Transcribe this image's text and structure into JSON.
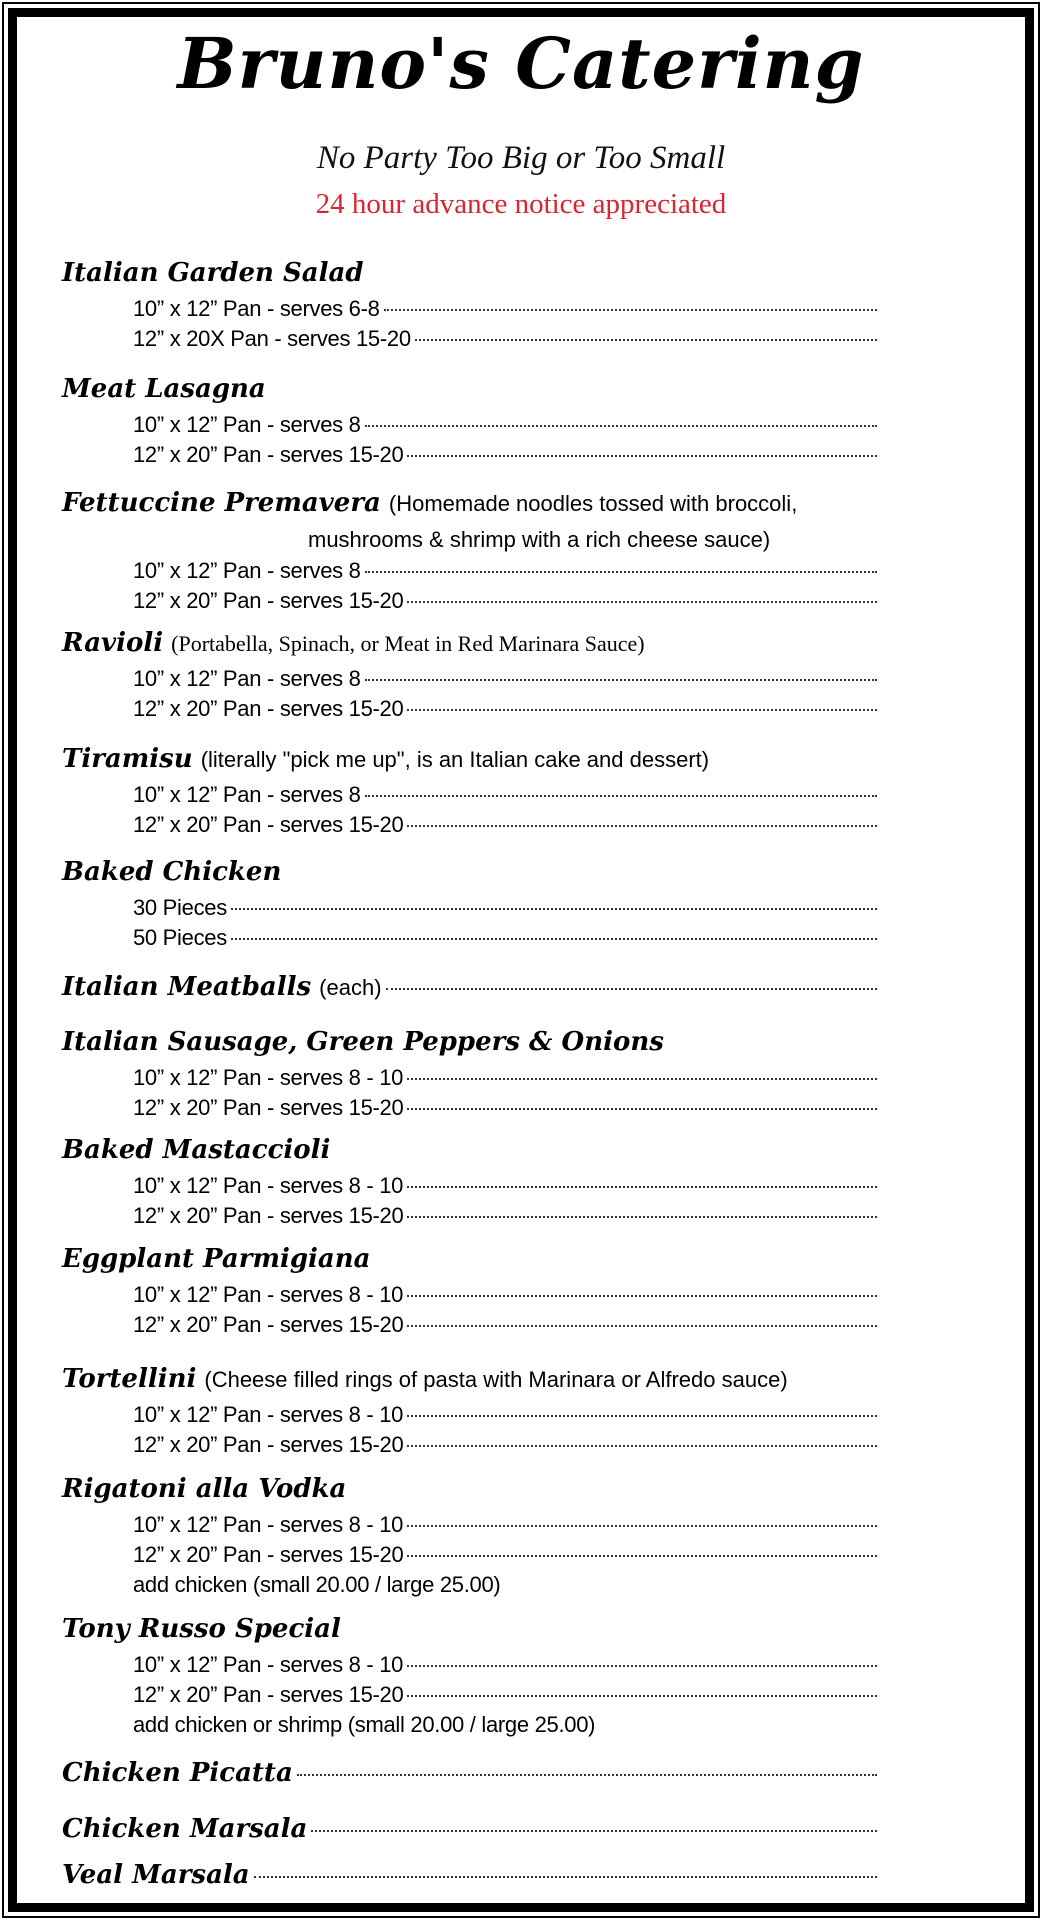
{
  "header": {
    "title": "Bruno's Catering",
    "subtitle": "No Party Too Big or Too Small",
    "notice": "24 hour advance notice appreciated"
  },
  "colors": {
    "notice": "#d7262f",
    "text": "#000000",
    "border": "#000000"
  },
  "sections": [
    {
      "name": "Italian Garden Salad",
      "items": [
        "10” x 12” Pan -  serves 6-8",
        "12” x 20X Pan -  serves 15-20"
      ]
    },
    {
      "name": "Meat Lasagna",
      "items": [
        "10” x 12” Pan -  serves 8",
        "12” x 20” Pan -  serves 15-20"
      ]
    },
    {
      "name": "Fettuccine Premavera",
      "desc": "(Homemade noodles tossed with broccoli,",
      "desc2": "mushrooms & shrimp with a rich cheese sauce)",
      "items": [
        "10” x 12” Pan -  serves 8",
        "12” x 20” Pan -  serves 15-20"
      ]
    },
    {
      "name": "Ravioli",
      "desc": "(Portabella, Spinach, or Meat in Red Marinara Sauce)",
      "items": [
        "10” x 12” Pan -  serves 8",
        "12” x 20” Pan -  serves 15-20"
      ]
    },
    {
      "name": "Tiramisu",
      "desc": "(literally \"pick me up\", is an Italian cake and dessert)",
      "items": [
        "10” x 12” Pan -  serves 8",
        "12” x 20” Pan -  serves 15-20"
      ]
    },
    {
      "name": "Baked Chicken",
      "items": [
        "30 Pieces",
        "50 Pieces"
      ]
    },
    {
      "name": "Italian Meatballs",
      "desc": "(each)",
      "leader": true,
      "items": []
    },
    {
      "name": "Italian Sausage, Green Peppers & Onions",
      "items": [
        "10” x 12” Pan -  serves 8 - 10",
        "12” x 20” Pan -  serves 15-20"
      ]
    },
    {
      "name": "Baked Mastaccioli",
      "items": [
        "10” x 12” Pan -  serves 8 - 10",
        "12” x 20” Pan -  serves 15-20"
      ]
    },
    {
      "name": "Eggplant Parmigiana",
      "items": [
        "10” x 12” Pan -  serves 8 - 10",
        "12” x 20” Pan -  serves 15-20"
      ]
    },
    {
      "name": "Tortellini",
      "desc": "(Cheese filled rings of pasta with Marinara or Alfredo sauce)",
      "items": [
        "10” x 12” Pan -  serves 8 - 10",
        "12” x 20” Pan -  serves 15-20"
      ]
    },
    {
      "name": "Rigatoni alla Vodka",
      "items": [
        "10” x 12” Pan -  serves 8 - 10",
        "12” x 20” Pan -  serves 15-20"
      ],
      "note": "add chicken     (small 20.00 / large 25.00)"
    },
    {
      "name": "Tony Russo Special",
      "items": [
        "10” x 12” Pan -  serves 8 - 10",
        "12” x 20” Pan -  serves 15-20"
      ],
      "note": "add chicken or shrimp  (small 20.00 / large 25.00)"
    },
    {
      "name": "Chicken Picatta",
      "leader": true,
      "items": []
    },
    {
      "name": "Chicken Marsala",
      "leader": true,
      "items": []
    },
    {
      "name": "Veal Marsala",
      "leader": true,
      "items": []
    }
  ]
}
